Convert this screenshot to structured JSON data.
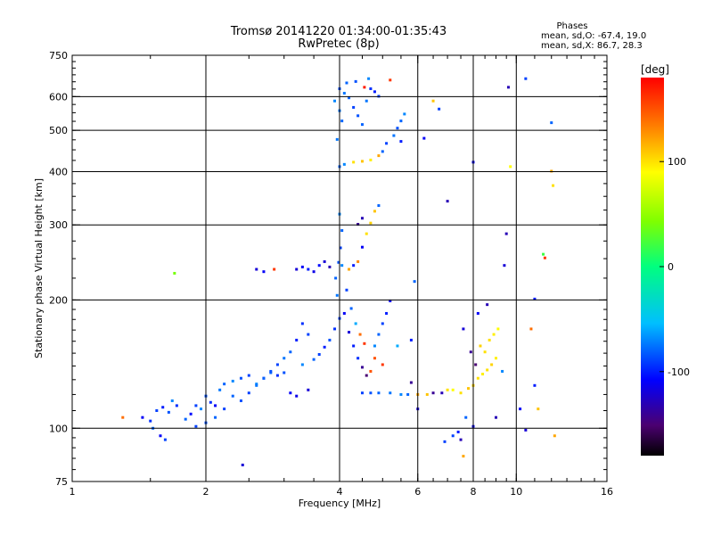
{
  "chart_data": {
    "type": "scatter",
    "title": "Tromsø 20141220 01:34:00-01:35:43",
    "subtitle": "RwPretec (8p)",
    "xlabel": "Frequency [MHz]",
    "ylabel": "Stationary phase Virtual Height [km]",
    "x_scale": "log",
    "y_scale": "log",
    "xlim": [
      1,
      16
    ],
    "ylim": [
      75,
      750
    ],
    "x_ticks": [
      1,
      2,
      4,
      6,
      8,
      10,
      16
    ],
    "y_ticks": [
      75,
      100,
      200,
      300,
      400,
      500,
      600,
      750
    ],
    "x_tick_labels": [
      "1",
      "2",
      "4",
      "6",
      "8",
      "10",
      "16"
    ],
    "y_tick_labels": [
      "75",
      "100",
      "200",
      "300",
      "400",
      "500",
      "600",
      "750"
    ],
    "grid": true,
    "info": {
      "title": "Phases",
      "line1": "mean, sd,O: -67.4, 19.0",
      "line2": "mean, sd,X:  86.7, 28.3"
    },
    "colorbar": {
      "label": "[deg]",
      "range": [
        -180,
        180
      ],
      "ticks": [
        100,
        0,
        -100
      ],
      "tick_labels": [
        "100",
        "0",
        "-100"
      ]
    },
    "series": [
      {
        "points": [
          [
            1.44,
            106,
            -110
          ],
          [
            1.5,
            104,
            -95
          ],
          [
            1.55,
            110,
            -90
          ],
          [
            1.6,
            112,
            -100
          ],
          [
            1.65,
            109,
            -85
          ],
          [
            1.58,
            96,
            -110
          ],
          [
            1.62,
            94,
            -90
          ],
          [
            1.52,
            100,
            -80
          ],
          [
            1.68,
            116,
            -70
          ],
          [
            1.72,
            113,
            -95
          ],
          [
            1.8,
            105,
            -80
          ],
          [
            1.85,
            108,
            -105
          ],
          [
            1.9,
            113,
            -90
          ],
          [
            1.95,
            111,
            -70
          ],
          [
            2.0,
            119,
            -85
          ],
          [
            2.05,
            115,
            -95
          ],
          [
            2.1,
            113,
            -110
          ],
          [
            2.15,
            123,
            -75
          ],
          [
            2.2,
            127,
            -80
          ],
          [
            2.3,
            129,
            -70
          ],
          [
            2.4,
            131,
            -85
          ],
          [
            2.5,
            133,
            -90
          ],
          [
            2.6,
            127,
            -70
          ],
          [
            2.7,
            131,
            -105
          ],
          [
            2.8,
            135,
            -80
          ],
          [
            2.9,
            133,
            -95
          ],
          [
            3.0,
            135,
            -85
          ],
          [
            3.1,
            121,
            -110
          ],
          [
            3.2,
            119,
            -115
          ],
          [
            3.3,
            141,
            -70
          ],
          [
            3.4,
            123,
            -120
          ],
          [
            3.5,
            145,
            -80
          ],
          [
            3.6,
            149,
            -90
          ],
          [
            3.7,
            155,
            -100
          ],
          [
            3.8,
            161,
            -85
          ],
          [
            3.9,
            171,
            -95
          ],
          [
            4.0,
            181,
            -90
          ],
          [
            3.95,
            205,
            -75
          ],
          [
            3.92,
            225,
            -80
          ],
          [
            3.98,
            245,
            -85
          ],
          [
            4.02,
            265,
            -90
          ],
          [
            4.05,
            291,
            -80
          ],
          [
            4.0,
            318,
            -70
          ],
          [
            4.1,
            186,
            -110
          ],
          [
            4.2,
            168,
            -120
          ],
          [
            4.3,
            156,
            -100
          ],
          [
            4.4,
            146,
            -95
          ],
          [
            4.5,
            139,
            -140
          ],
          [
            4.6,
            133,
            -150
          ],
          [
            4.7,
            136,
            150
          ],
          [
            4.55,
            158,
            160
          ],
          [
            4.45,
            166,
            140
          ],
          [
            4.35,
            176,
            -60
          ],
          [
            4.25,
            191,
            -80
          ],
          [
            4.15,
            211,
            -90
          ],
          [
            4.05,
            241,
            -70
          ],
          [
            4.5,
            121,
            -90
          ],
          [
            4.7,
            121,
            -85
          ],
          [
            4.9,
            121,
            -80
          ],
          [
            5.2,
            121,
            -75
          ],
          [
            5.5,
            120,
            -70
          ],
          [
            5.7,
            120,
            -80
          ],
          [
            6.0,
            120,
            120
          ],
          [
            6.3,
            120,
            110
          ],
          [
            6.5,
            121,
            -140
          ],
          [
            6.8,
            121,
            -130
          ],
          [
            7.0,
            123,
            100
          ],
          [
            7.2,
            123,
            90
          ],
          [
            7.5,
            121,
            100
          ],
          [
            7.8,
            124,
            110
          ],
          [
            8.0,
            126,
            105
          ],
          [
            8.2,
            131,
            100
          ],
          [
            8.4,
            134,
            95
          ],
          [
            8.6,
            137,
            100
          ],
          [
            8.8,
            141,
            105
          ],
          [
            9.0,
            146,
            95
          ],
          [
            8.5,
            151,
            100
          ],
          [
            8.3,
            156,
            105
          ],
          [
            8.7,
            161,
            100
          ],
          [
            8.9,
            166,
            95
          ],
          [
            9.1,
            171,
            90
          ],
          [
            9.3,
            136,
            -70
          ],
          [
            8.1,
            141,
            -150
          ],
          [
            7.9,
            151,
            -140
          ],
          [
            7.6,
            171,
            -120
          ],
          [
            8.2,
            186,
            -110
          ],
          [
            8.6,
            195,
            -130
          ],
          [
            4.0,
            411,
            -80
          ],
          [
            4.1,
            416,
            -70
          ],
          [
            4.3,
            421,
            100
          ],
          [
            4.5,
            423,
            110
          ],
          [
            4.7,
            426,
            95
          ],
          [
            4.9,
            436,
            120
          ],
          [
            5.0,
            446,
            -80
          ],
          [
            5.1,
            466,
            -90
          ],
          [
            5.3,
            486,
            -75
          ],
          [
            5.4,
            506,
            -85
          ],
          [
            5.5,
            526,
            -80
          ],
          [
            5.6,
            546,
            -70
          ],
          [
            3.95,
            476,
            -75
          ],
          [
            4.05,
            526,
            -80
          ],
          [
            3.9,
            586,
            -70
          ],
          [
            4.0,
            626,
            -85
          ],
          [
            4.1,
            611,
            -75
          ],
          [
            4.2,
            596,
            -80
          ],
          [
            4.3,
            566,
            -90
          ],
          [
            4.4,
            541,
            -85
          ],
          [
            4.5,
            516,
            -80
          ],
          [
            4.6,
            586,
            -75
          ],
          [
            4.7,
            626,
            -95
          ],
          [
            4.8,
            616,
            -100
          ],
          [
            4.9,
            601,
            -90
          ],
          [
            4.0,
            556,
            -75
          ],
          [
            4.15,
            646,
            -80
          ],
          [
            4.35,
            651,
            -85
          ],
          [
            4.65,
            661,
            -70
          ],
          [
            5.2,
            656,
            160
          ],
          [
            4.55,
            631,
            170
          ],
          [
            3.2,
            236,
            -120
          ],
          [
            3.3,
            239,
            -110
          ],
          [
            3.4,
            236,
            -100
          ],
          [
            3.5,
            233,
            -115
          ],
          [
            3.6,
            241,
            -105
          ],
          [
            3.7,
            246,
            -120
          ],
          [
            3.8,
            239,
            -130
          ],
          [
            2.6,
            236,
            -120
          ],
          [
            2.7,
            233,
            -110
          ],
          [
            2.85,
            236,
            160
          ],
          [
            4.2,
            236,
            120
          ],
          [
            4.3,
            241,
            -100
          ],
          [
            4.4,
            246,
            130
          ],
          [
            4.5,
            266,
            -110
          ],
          [
            4.6,
            286,
            100
          ],
          [
            4.7,
            303,
            105
          ],
          [
            4.8,
            323,
            110
          ],
          [
            4.9,
            333,
            -80
          ],
          [
            4.5,
            311,
            -130
          ],
          [
            4.4,
            301,
            -140
          ],
          [
            1.7,
            231,
            40
          ],
          [
            1.3,
            106,
            140
          ],
          [
            2.42,
            82,
            -120
          ],
          [
            7.2,
            96,
            -90
          ],
          [
            7.4,
            98,
            -100
          ],
          [
            7.5,
            94,
            -130
          ],
          [
            8.0,
            101,
            -110
          ],
          [
            6.0,
            111,
            -120
          ],
          [
            5.8,
            128,
            -140
          ],
          [
            9.0,
            106,
            -130
          ],
          [
            10.2,
            111,
            -110
          ],
          [
            10.5,
            99,
            -120
          ],
          [
            11.0,
            201,
            -100
          ],
          [
            11.5,
            256,
            20
          ],
          [
            11.6,
            251,
            160
          ],
          [
            12.0,
            401,
            120
          ],
          [
            12.1,
            371,
            100
          ],
          [
            12.0,
            521,
            -80
          ],
          [
            10.5,
            661,
            -90
          ],
          [
            9.6,
            631,
            -130
          ],
          [
            9.7,
            411,
            90
          ],
          [
            9.5,
            286,
            -130
          ],
          [
            9.4,
            241,
            -120
          ],
          [
            7.0,
            341,
            -130
          ],
          [
            8.0,
            421,
            -110
          ],
          [
            6.5,
            586,
            110
          ],
          [
            6.7,
            561,
            -90
          ],
          [
            6.2,
            479,
            -110
          ],
          [
            5.5,
            471,
            -100
          ],
          [
            5.9,
            221,
            -80
          ],
          [
            5.2,
            199,
            -110
          ],
          [
            5.1,
            186,
            -100
          ],
          [
            5.0,
            176,
            -90
          ],
          [
            4.9,
            166,
            -80
          ],
          [
            4.8,
            156,
            -70
          ],
          [
            4.8,
            146,
            150
          ],
          [
            5.0,
            141,
            160
          ],
          [
            5.4,
            156,
            -60
          ],
          [
            5.8,
            161,
            -100
          ],
          [
            3.4,
            166,
            -90
          ],
          [
            3.3,
            176,
            -95
          ],
          [
            3.2,
            161,
            -100
          ],
          [
            3.1,
            151,
            -80
          ],
          [
            3.0,
            146,
            -75
          ],
          [
            2.9,
            141,
            -90
          ],
          [
            2.8,
            136,
            -85
          ],
          [
            2.7,
            131,
            -80
          ],
          [
            2.6,
            126,
            -75
          ],
          [
            2.5,
            121,
            -90
          ],
          [
            2.4,
            116,
            -85
          ],
          [
            2.3,
            119,
            -80
          ],
          [
            2.2,
            111,
            -90
          ],
          [
            2.1,
            106,
            -80
          ],
          [
            2.0,
            103,
            -85
          ],
          [
            1.9,
            101,
            -90
          ],
          [
            12.2,
            96,
            120
          ],
          [
            10.8,
            171,
            140
          ],
          [
            11.0,
            126,
            -100
          ],
          [
            11.2,
            111,
            110
          ],
          [
            7.6,
            86,
            120
          ],
          [
            7.7,
            106,
            -80
          ],
          [
            6.9,
            93,
            -90
          ]
        ]
      }
    ]
  }
}
